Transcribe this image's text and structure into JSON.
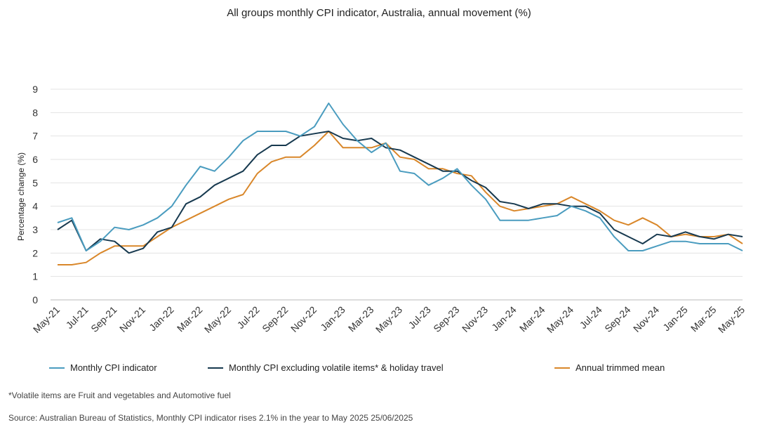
{
  "chart_data": {
    "type": "line",
    "title": "All groups monthly CPI indicator, Australia, annual movement (%)",
    "ylabel": "Percentage change (%)",
    "xlabel": "",
    "ylim": [
      0,
      9
    ],
    "yticks": [
      0,
      1,
      2,
      3,
      4,
      5,
      6,
      7,
      8,
      9
    ],
    "grid": true,
    "legend_position": "bottom",
    "x": [
      "May-21",
      "Jun-21",
      "Jul-21",
      "Aug-21",
      "Sep-21",
      "Oct-21",
      "Nov-21",
      "Dec-21",
      "Jan-22",
      "Feb-22",
      "Mar-22",
      "Apr-22",
      "May-22",
      "Jun-22",
      "Jul-22",
      "Aug-22",
      "Sep-22",
      "Oct-22",
      "Nov-22",
      "Dec-22",
      "Jan-23",
      "Feb-23",
      "Mar-23",
      "Apr-23",
      "May-23",
      "Jun-23",
      "Jul-23",
      "Aug-23",
      "Sep-23",
      "Oct-23",
      "Nov-23",
      "Dec-23",
      "Jan-24",
      "Feb-24",
      "Mar-24",
      "Apr-24",
      "May-24",
      "Jun-24",
      "Jul-24",
      "Aug-24",
      "Sep-24",
      "Oct-24",
      "Nov-24",
      "Dec-24",
      "Jan-25",
      "Feb-25",
      "Mar-25",
      "Apr-25",
      "May-25"
    ],
    "x_tick_labels": [
      "May-21",
      "Jul-21",
      "Sep-21",
      "Nov-21",
      "Jan-22",
      "Mar-22",
      "May-22",
      "Jul-22",
      "Sep-22",
      "Nov-22",
      "Jan-23",
      "Mar-23",
      "May-23",
      "Jul-23",
      "Sep-23",
      "Nov-23",
      "Jan-24",
      "Mar-24",
      "May-24",
      "Jul-24",
      "Sep-24",
      "Nov-24",
      "Jan-25",
      "Mar-25",
      "May-25"
    ],
    "series": [
      {
        "name": "Monthly CPI indicator",
        "color": "#4a9cbf",
        "values": [
          3.3,
          3.5,
          2.1,
          2.5,
          3.1,
          3.0,
          3.2,
          3.5,
          4.0,
          4.9,
          5.7,
          5.5,
          6.1,
          6.8,
          7.2,
          7.2,
          7.2,
          7.0,
          7.4,
          8.4,
          7.5,
          6.8,
          6.3,
          6.7,
          5.5,
          5.4,
          4.9,
          5.2,
          5.6,
          4.9,
          4.3,
          3.4,
          3.4,
          3.4,
          3.5,
          3.6,
          4.0,
          3.8,
          3.5,
          2.7,
          2.1,
          2.1,
          2.3,
          2.5,
          2.5,
          2.4,
          2.4,
          2.4,
          2.1
        ]
      },
      {
        "name": "Monthly CPI excluding volatile items* & holiday travel",
        "color": "#17394f",
        "values": [
          3.0,
          3.4,
          2.1,
          2.6,
          2.5,
          2.0,
          2.2,
          2.9,
          3.1,
          4.1,
          4.4,
          4.9,
          5.2,
          5.5,
          6.2,
          6.6,
          6.6,
          7.0,
          7.1,
          7.2,
          6.9,
          6.8,
          6.9,
          6.5,
          6.4,
          6.1,
          5.8,
          5.5,
          5.5,
          5.1,
          4.8,
          4.2,
          4.1,
          3.9,
          4.1,
          4.1,
          4.0,
          4.0,
          3.7,
          3.0,
          2.7,
          2.4,
          2.8,
          2.7,
          2.9,
          2.7,
          2.6,
          2.8,
          2.7
        ]
      },
      {
        "name": "Annual trimmed mean",
        "color": "#d9872a",
        "values": [
          1.5,
          1.5,
          1.6,
          2.0,
          2.3,
          2.3,
          2.3,
          2.7,
          3.1,
          3.4,
          3.7,
          4.0,
          4.3,
          4.5,
          5.4,
          5.9,
          6.1,
          6.1,
          6.6,
          7.2,
          6.5,
          6.5,
          6.5,
          6.7,
          6.1,
          6.0,
          5.6,
          5.6,
          5.4,
          5.3,
          4.6,
          4.0,
          3.8,
          3.9,
          4.0,
          4.1,
          4.4,
          4.1,
          3.8,
          3.4,
          3.2,
          3.5,
          3.2,
          2.7,
          2.8,
          2.7,
          2.7,
          2.8,
          2.4
        ]
      }
    ]
  },
  "footnote": "*Volatile items are Fruit and vegetables and Automotive fuel",
  "source": "Source: Australian Bureau of Statistics, Monthly CPI indicator rises 2.1% in the year to May 2025 25/06/2025"
}
